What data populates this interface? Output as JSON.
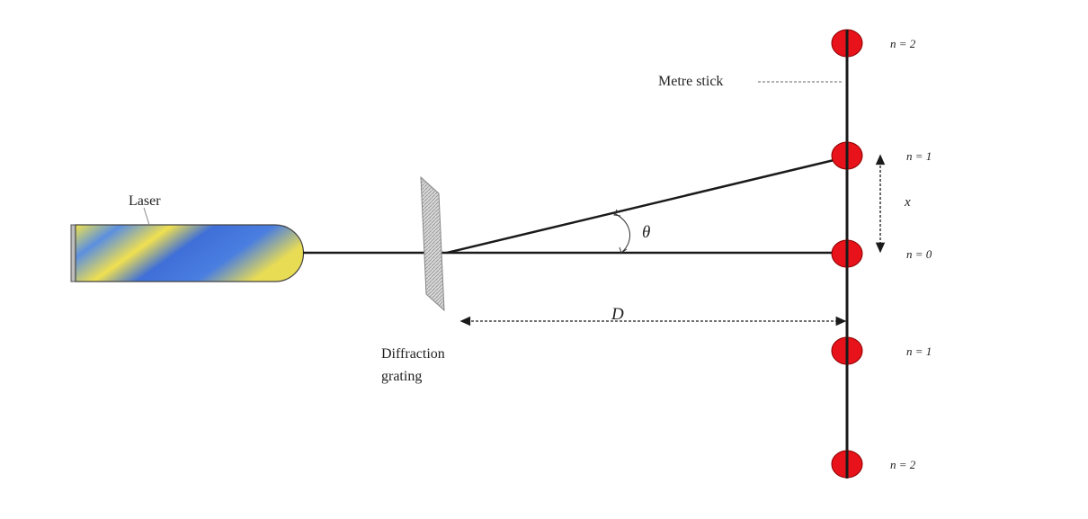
{
  "labels": {
    "laser": "Laser",
    "grating_line1": "Diffraction",
    "grating_line2": "grating",
    "metre_stick": "Metre stick",
    "theta": "θ",
    "x": "x",
    "D": "D"
  },
  "orders": [
    {
      "label": "n = 2"
    },
    {
      "label": "n = 1"
    },
    {
      "label": "n = 0"
    },
    {
      "label": "n = 1"
    },
    {
      "label": "n = 2"
    }
  ],
  "colors": {
    "spot": "#e8121a",
    "line": "#1a1a1a",
    "laser_yellow": "#f2e54a",
    "laser_blue": "#3f6fd8",
    "grating": "#bdbdbd"
  }
}
